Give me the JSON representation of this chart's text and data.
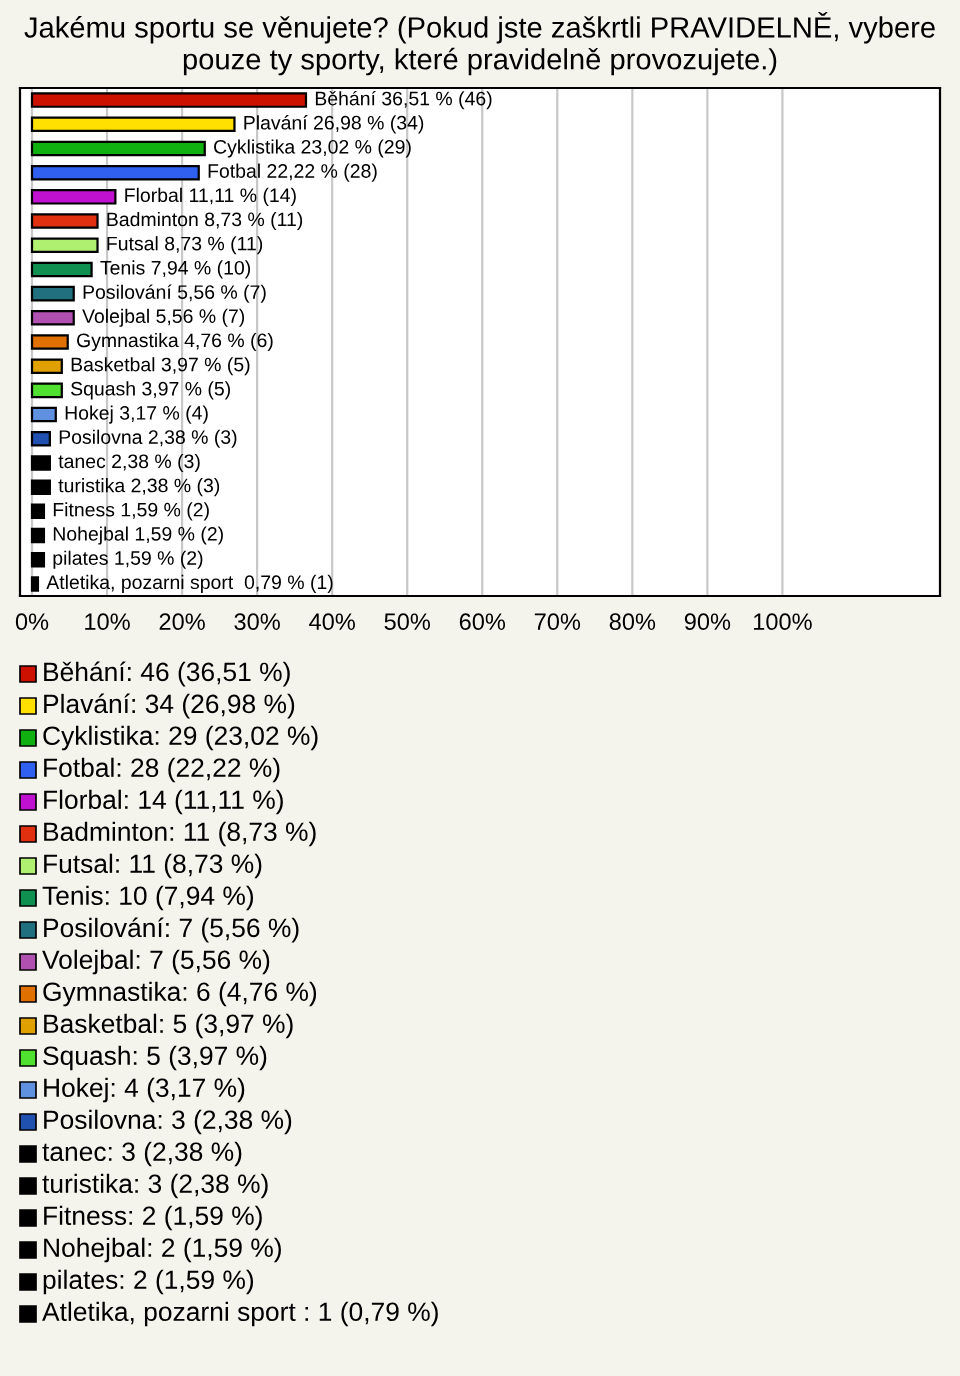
{
  "chart_data": {
    "type": "bar",
    "orientation": "horizontal",
    "title": "Jakému sportu se věnujete? (Pokud jste zaškrtli PRAVIDELNĚ, vybere pouze ty sporty, které pravidelně provozujete.)",
    "categories": [
      null,
      null,
      null,
      null,
      null,
      null,
      null,
      null,
      null,
      null,
      null,
      null,
      null,
      null,
      null,
      null,
      null,
      null,
      null,
      null,
      null
    ],
    "values": [
      36.51,
      26.98,
      23.02,
      22.22,
      11.11,
      8.73,
      8.73,
      7.94,
      5.56,
      5.56,
      4.76,
      3.97,
      3.97,
      3.17,
      2.38,
      2.38,
      2.38,
      1.59,
      1.59,
      1.59,
      0.79
    ],
    "value_labels": [
      "Běhání 36,51 % (46)",
      "Plavání 26,98 % (34)",
      "Cyklistika 23,02 % (29)",
      "Fotbal 22,22 % (28)",
      "Florbal 11,11 % (14)",
      "Badminton 8,73 % (11)",
      "Futsal 8,73 % (11)",
      "Tenis 7,94 % (10)",
      "Posilování 5,56 % (7)",
      "Volejbal 5,56 % (7)",
      "Gymnastika 4,76 % (6)",
      "Basketbal 3,97 % (5)",
      "Squash 3,97 % (5)",
      "Hokej 3,17 % (4)",
      "Posilovna 2,38 % (3)",
      "tanec 2,38 % (3)",
      "turistika 2,38 % (3)",
      "Fitness 1,59 % (2)",
      "Nohejbal 1,59 % (2)",
      "pilates 1,59 % (2)",
      "Atletika, pozarni sport  0,79 % (1)"
    ],
    "colors": [
      "#cc1100",
      "#ffe000",
      "#10b010",
      "#3060f0",
      "#c010d0",
      "#e03010",
      "#b0f070",
      "#109050",
      "#207080",
      "#b050b0",
      "#e07000",
      "#e0a000",
      "#50e030",
      "#6090e0",
      "#2050b0",
      "#000000",
      "#000000",
      "#000000",
      "#000000",
      "#000000",
      "#000000"
    ],
    "annotations": [
      "Běhání: 46 (36,51 %)",
      "Plavání: 34 (26,98 %)",
      "Cyklistika: 29 (23,02 %)",
      "Fotbal: 28 (22,22 %)",
      "Florbal: 14 (11,11 %)",
      "Badminton: 11 (8,73 %)",
      "Futsal: 11 (8,73 %)",
      "Tenis: 10 (7,94 %)",
      "Posilování: 7 (5,56 %)",
      "Volejbal: 7 (5,56 %)",
      "Gymnastika: 6 (4,76 %)",
      "Basketbal: 5 (3,97 %)",
      "Squash: 5 (3,97 %)",
      "Hokej: 4 (3,17 %)",
      "Posilovna: 3 (2,38 %)",
      "tanec: 3 (2,38 %)",
      "turistika: 3 (2,38 %)",
      "Fitness: 2 (1,59 %)",
      "Nohejbal: 2 (1,59 %)",
      "pilates: 2 (1,59 %)",
      "Atletika, pozarni sport : 1 (0,79 %)"
    ],
    "xlim": [
      -1.6,
      121
    ],
    "xticks": [
      {
        "value": 0,
        "label": "0%"
      },
      {
        "value": 10,
        "label": "10%"
      },
      {
        "value": 20,
        "label": "20%"
      },
      {
        "value": 30,
        "label": "30%"
      },
      {
        "value": 40,
        "label": "40%"
      },
      {
        "value": 50,
        "label": "50%"
      },
      {
        "value": 60,
        "label": "60%"
      },
      {
        "value": 70,
        "label": "70%"
      },
      {
        "value": 80,
        "label": "80%"
      },
      {
        "value": 90,
        "label": "90%"
      },
      {
        "value": 100,
        "label": "100%"
      }
    ],
    "grid": "x",
    "legend": false
  }
}
